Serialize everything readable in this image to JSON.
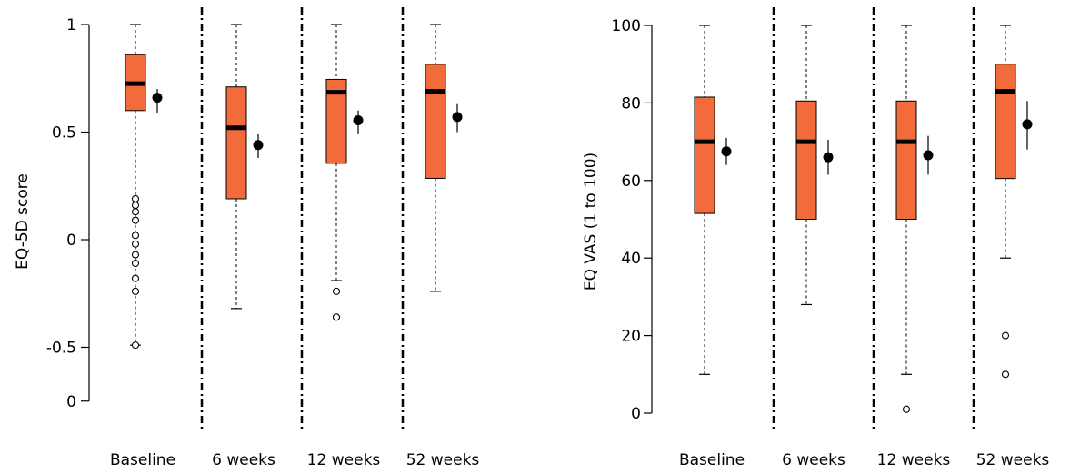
{
  "chart_data": [
    {
      "type": "boxplot",
      "ylabel": "EQ-5D score",
      "ylim": [
        -0.75,
        1.0
      ],
      "yticks": [
        -0.5,
        0,
        0.5,
        1
      ],
      "ytick_labels": [
        "-0.5",
        "0",
        "0.5",
        "1"
      ],
      "extra_ytick": {
        "value": -0.75,
        "label": "0"
      },
      "categories": [
        "Baseline",
        "6 weeks",
        "12 weeks",
        "52 weeks"
      ],
      "box_color": "#f26b3a",
      "boxes": [
        {
          "lower_whisker": -0.49,
          "q1": 0.6,
          "median": 0.725,
          "q3": 0.86,
          "upper_whisker": 1.0,
          "outliers": [
            0.19,
            0.16,
            0.13,
            0.09,
            0.02,
            -0.02,
            -0.07,
            -0.11,
            -0.18,
            -0.24,
            -0.49
          ]
        },
        {
          "lower_whisker": -0.32,
          "q1": 0.19,
          "median": 0.52,
          "q3": 0.71,
          "upper_whisker": 1.0,
          "outliers": []
        },
        {
          "lower_whisker": -0.19,
          "q1": 0.355,
          "median": 0.685,
          "q3": 0.745,
          "upper_whisker": 1.0,
          "outliers": [
            -0.24,
            -0.36
          ]
        },
        {
          "lower_whisker": -0.24,
          "q1": 0.285,
          "median": 0.69,
          "q3": 0.815,
          "upper_whisker": 1.0,
          "outliers": []
        }
      ],
      "means": [
        {
          "mean": 0.66,
          "ci": [
            0.59,
            0.7
          ]
        },
        {
          "mean": 0.44,
          "ci": [
            0.38,
            0.49
          ]
        },
        {
          "mean": 0.555,
          "ci": [
            0.49,
            0.6
          ]
        },
        {
          "mean": 0.57,
          "ci": [
            0.5,
            0.63
          ]
        }
      ]
    },
    {
      "type": "boxplot",
      "ylabel": "EQ VAS (1 to 100)",
      "ylim": [
        0,
        100
      ],
      "yticks": [
        0,
        20,
        40,
        60,
        80,
        100
      ],
      "ytick_labels": [
        "0",
        "20",
        "40",
        "60",
        "80",
        "100"
      ],
      "categories": [
        "Baseline",
        "6 weeks",
        "12 weeks",
        "52 weeks"
      ],
      "box_color": "#f26b3a",
      "boxes": [
        {
          "lower_whisker": 10,
          "q1": 51.5,
          "median": 70,
          "q3": 81.5,
          "upper_whisker": 100,
          "outliers": []
        },
        {
          "lower_whisker": 28,
          "q1": 50,
          "median": 70,
          "q3": 80.5,
          "upper_whisker": 100,
          "outliers": []
        },
        {
          "lower_whisker": 10,
          "q1": 50,
          "median": 70,
          "q3": 80.5,
          "upper_whisker": 100,
          "outliers": [
            1
          ]
        },
        {
          "lower_whisker": 40,
          "q1": 60.5,
          "median": 83,
          "q3": 90,
          "upper_whisker": 100,
          "outliers": [
            20,
            10
          ]
        }
      ],
      "means": [
        {
          "mean": 67.5,
          "ci": [
            64,
            71
          ]
        },
        {
          "mean": 66,
          "ci": [
            61.5,
            70.5
          ]
        },
        {
          "mean": 66.5,
          "ci": [
            61.5,
            71.5
          ]
        },
        {
          "mean": 74.5,
          "ci": [
            68,
            80.5
          ]
        }
      ]
    }
  ]
}
